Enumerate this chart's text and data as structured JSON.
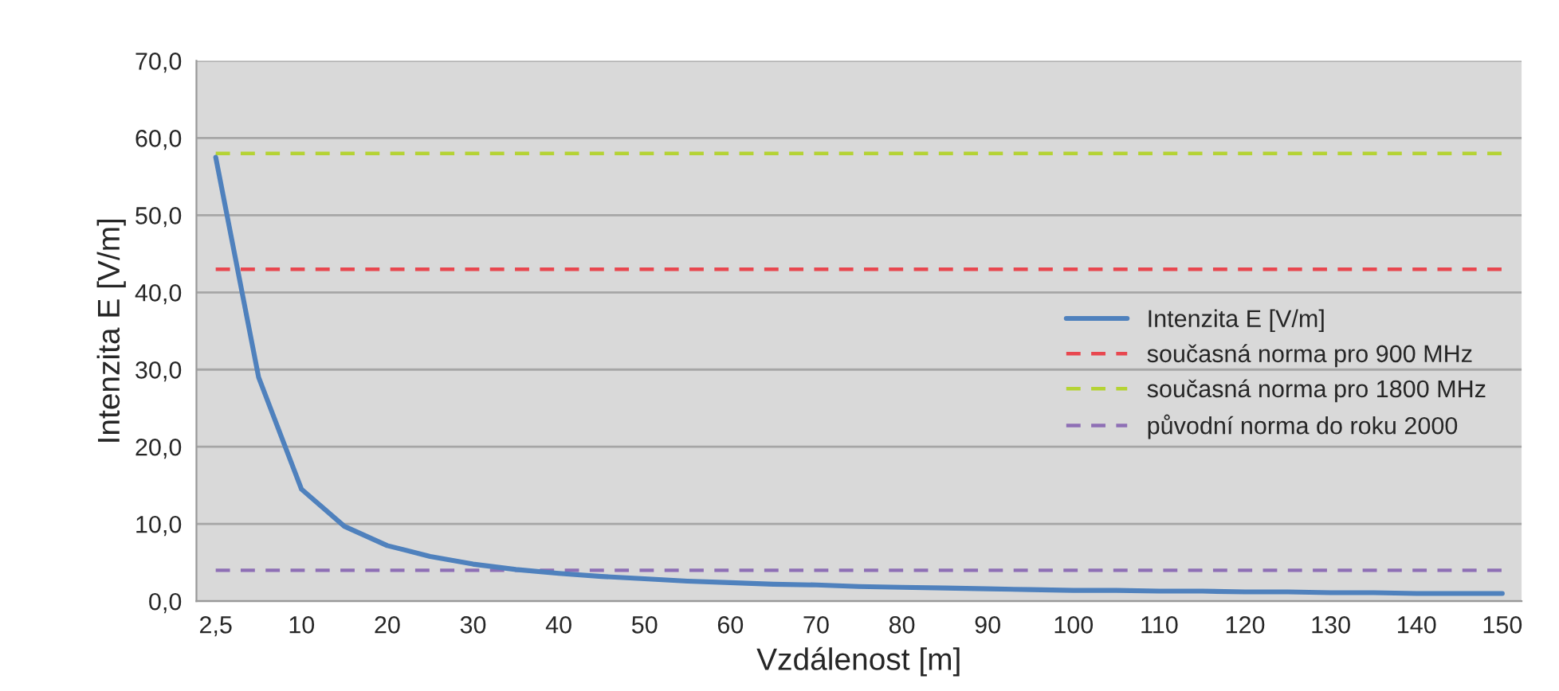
{
  "chart_data": {
    "type": "line",
    "xlabel": "Vzdálenost [m]",
    "ylabel": "Intenzita E [V/m]",
    "categories": [
      "2,5",
      null,
      "10",
      null,
      "20",
      null,
      "30",
      null,
      "40",
      null,
      "50",
      null,
      "60",
      null,
      "70",
      null,
      "80",
      null,
      "90",
      null,
      "100",
      null,
      "110",
      null,
      "120",
      null,
      "130",
      null,
      "140",
      null,
      "150"
    ],
    "series": [
      {
        "name": "Intenzita E [V/m]",
        "color": "#4f81bd",
        "line_style": "solid",
        "values": [
          57.5,
          29,
          14.5,
          9.7,
          7.2,
          5.8,
          4.8,
          4.1,
          3.6,
          3.2,
          2.9,
          2.6,
          2.4,
          2.2,
          2.1,
          1.9,
          1.8,
          1.7,
          1.6,
          1.5,
          1.4,
          1.4,
          1.3,
          1.3,
          1.2,
          1.2,
          1.1,
          1.1,
          1.0,
          1.0,
          1.0
        ]
      },
      {
        "name": "současná norma pro 900 MHz",
        "color": "#e8474f",
        "line_style": "dashed",
        "values": [
          43,
          43,
          43,
          43,
          43,
          43,
          43,
          43,
          43,
          43,
          43,
          43,
          43,
          43,
          43,
          43,
          43,
          43,
          43,
          43,
          43,
          43,
          43,
          43,
          43,
          43,
          43,
          43,
          43,
          43,
          43
        ]
      },
      {
        "name": "současná norma pro 1800 MHz",
        "color": "#b5d334",
        "line_style": "dashed",
        "values": [
          58,
          58,
          58,
          58,
          58,
          58,
          58,
          58,
          58,
          58,
          58,
          58,
          58,
          58,
          58,
          58,
          58,
          58,
          58,
          58,
          58,
          58,
          58,
          58,
          58,
          58,
          58,
          58,
          58,
          58,
          58
        ]
      },
      {
        "name": "původní norma do roku 2000",
        "color": "#8e6fb5",
        "line_style": "dashed",
        "values": [
          4,
          4,
          4,
          4,
          4,
          4,
          4,
          4,
          4,
          4,
          4,
          4,
          4,
          4,
          4,
          4,
          4,
          4,
          4,
          4,
          4,
          4,
          4,
          4,
          4,
          4,
          4,
          4,
          4,
          4,
          4
        ]
      }
    ],
    "ylim": [
      0,
      70
    ],
    "yticks": [
      {
        "value": 0,
        "label": "0,0"
      },
      {
        "value": 10,
        "label": "10,0"
      },
      {
        "value": 20,
        "label": "20,0"
      },
      {
        "value": 30,
        "label": "30,0"
      },
      {
        "value": 40,
        "label": "40,0"
      },
      {
        "value": 50,
        "label": "50,0"
      },
      {
        "value": 60,
        "label": "60,0"
      },
      {
        "value": 70,
        "label": "70,0"
      }
    ],
    "grid": "y",
    "legend": "right",
    "marker": "none"
  }
}
